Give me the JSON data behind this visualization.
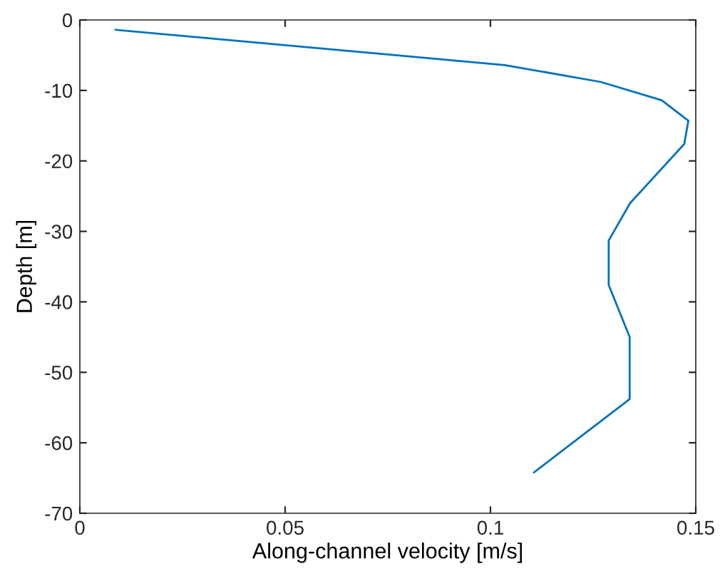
{
  "chart_data": {
    "type": "line",
    "xlabel": "Along-channel velocity [m/s]",
    "ylabel": "Depth [m]",
    "series": [
      {
        "color": "#0072bd",
        "x": [
          0.0087,
          0.1035,
          0.1269,
          0.1417,
          0.1482,
          0.1472,
          0.134,
          0.1288,
          0.1288,
          0.1339,
          0.1339,
          0.1106
        ],
        "values": [
          -1.4,
          -6.4,
          -8.8,
          -11.4,
          -14.3,
          -17.6,
          -26.0,
          -31.3,
          -37.6,
          -45.0,
          -53.8,
          -64.2
        ]
      }
    ],
    "xlim": [
      0,
      0.15
    ],
    "xticks": [
      0,
      0.05,
      0.1,
      0.15
    ],
    "ylim": [
      -70,
      0
    ],
    "yticks": [
      -70,
      -60,
      -50,
      -40,
      -30,
      -20,
      -10,
      0
    ],
    "grid": false,
    "legend": false,
    "marker": "none",
    "line_style": "solid"
  }
}
